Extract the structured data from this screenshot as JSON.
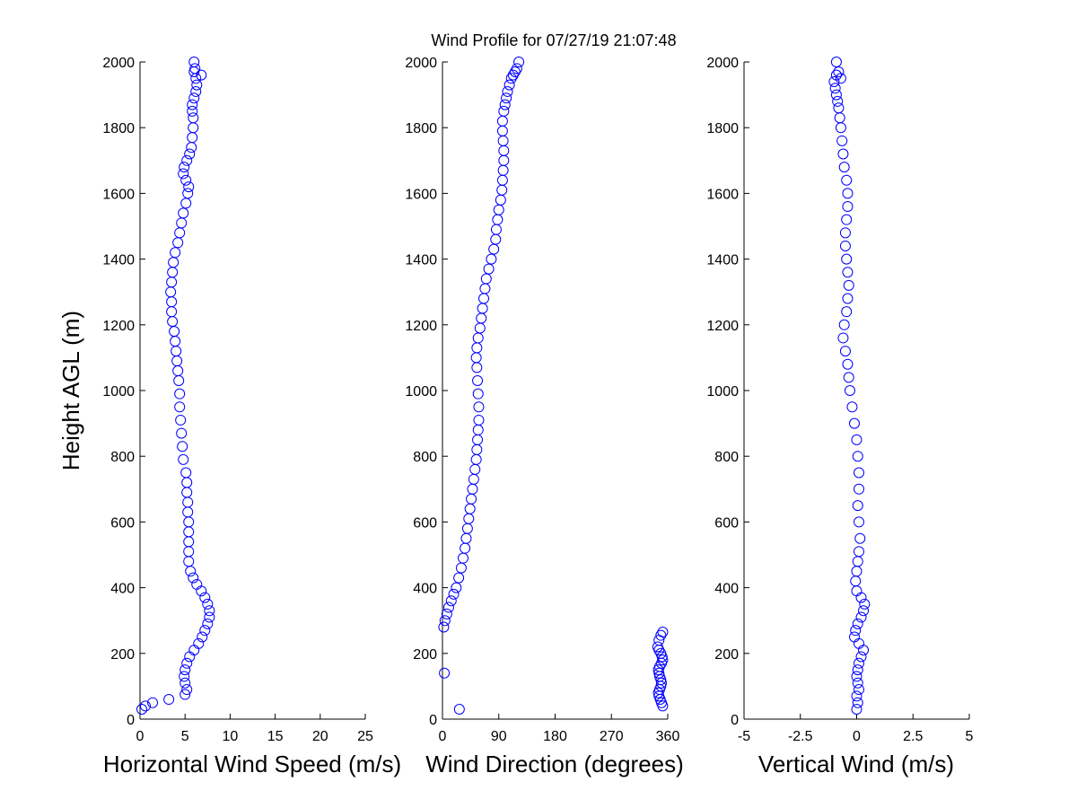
{
  "figure_title": "Wind Profile for  07/27/19 21:07:48",
  "chart_data": [
    {
      "type": "scatter",
      "xlabel": "Horizontal Wind Speed (m/s)",
      "ylabel": "Height AGL (m)",
      "xlim": [
        0,
        25
      ],
      "ylim": [
        0,
        2000
      ],
      "xticks": [
        "0",
        "5",
        "10",
        "15",
        "20",
        "25"
      ],
      "yticks": [
        "0",
        "200",
        "400",
        "600",
        "800",
        "1000",
        "1200",
        "1400",
        "1600",
        "1800",
        "2000"
      ],
      "marker_color": "#0000ff",
      "series": [
        {
          "x": [
            0.2,
            0.6,
            1.4,
            3.2,
            5.0,
            5.2,
            5.0,
            4.9,
            5.0,
            5.2,
            5.5,
            6.0,
            6.5,
            6.9,
            7.2,
            7.5,
            7.7,
            7.7,
            7.5,
            7.2,
            6.8,
            6.3,
            5.9,
            5.6,
            5.4,
            5.4,
            5.4,
            5.4,
            5.4,
            5.3,
            5.3,
            5.2,
            5.2,
            5.1,
            4.8,
            4.7,
            4.6,
            4.5,
            4.4,
            4.4,
            4.3,
            4.2,
            4.1,
            4.0,
            3.9,
            3.8,
            3.6,
            3.5,
            3.5,
            3.4,
            3.5,
            3.6,
            3.7,
            3.9,
            4.2,
            4.4,
            4.6,
            4.8,
            5.1,
            5.3,
            5.4,
            5.1,
            4.8,
            4.9,
            5.2,
            5.5,
            5.7,
            5.8,
            5.9,
            5.9,
            5.8,
            5.8,
            6.0,
            6.2,
            6.3,
            6.2,
            6.0,
            6.1,
            6.8,
            6.0
          ],
          "y": [
            30,
            40,
            50,
            60,
            75,
            90,
            110,
            130,
            150,
            170,
            190,
            210,
            230,
            250,
            270,
            290,
            310,
            330,
            350,
            370,
            390,
            410,
            430,
            450,
            480,
            510,
            540,
            570,
            600,
            630,
            660,
            690,
            720,
            750,
            790,
            830,
            870,
            910,
            950,
            990,
            1030,
            1060,
            1090,
            1120,
            1150,
            1180,
            1210,
            1240,
            1270,
            1300,
            1330,
            1360,
            1390,
            1420,
            1450,
            1480,
            1510,
            1540,
            1570,
            1600,
            1620,
            1640,
            1660,
            1680,
            1700,
            1720,
            1740,
            1770,
            1800,
            1830,
            1850,
            1870,
            1890,
            1910,
            1930,
            1950,
            1970,
            1980,
            1960,
            2000
          ]
        }
      ]
    },
    {
      "type": "scatter",
      "xlabel": "Wind Direction (degrees)",
      "ylabel": "",
      "xlim": [
        0,
        360
      ],
      "ylim": [
        0,
        2000
      ],
      "xticks": [
        "0",
        "90",
        "180",
        "270",
        "360"
      ],
      "yticks": [
        "0",
        "200",
        "400",
        "600",
        "800",
        "1000",
        "1200",
        "1400",
        "1600",
        "1800",
        "2000"
      ],
      "marker_color": "#0000ff",
      "series": [
        {
          "x": [
            27,
            3,
            2,
            4,
            7,
            10,
            14,
            18,
            22,
            26,
            30,
            33,
            36,
            38,
            40,
            42,
            44,
            46,
            48,
            50,
            52,
            54,
            55,
            56,
            57,
            58,
            58,
            57,
            56,
            55,
            54,
            55,
            57,
            60,
            62,
            64,
            66,
            68,
            70,
            74,
            78,
            82,
            85,
            86,
            88,
            90,
            93,
            95,
            96,
            97,
            98,
            98,
            97,
            96,
            96,
            98,
            100,
            102,
            104,
            107,
            110,
            113,
            116,
            119,
            122
          ],
          "y": [
            30,
            140,
            280,
            300,
            320,
            340,
            360,
            380,
            400,
            430,
            460,
            490,
            520,
            550,
            580,
            610,
            640,
            670,
            700,
            730,
            760,
            790,
            820,
            850,
            880,
            910,
            950,
            990,
            1030,
            1070,
            1100,
            1130,
            1160,
            1190,
            1220,
            1250,
            1280,
            1310,
            1340,
            1370,
            1400,
            1430,
            1460,
            1490,
            1520,
            1550,
            1580,
            1610,
            1640,
            1670,
            1700,
            1730,
            1760,
            1790,
            1820,
            1850,
            1870,
            1890,
            1910,
            1930,
            1950,
            1960,
            1970,
            1980,
            2000
          ]
        },
        {
          "x": [
            352,
            350,
            348,
            346,
            345,
            347,
            349,
            350,
            349,
            347,
            346,
            345,
            347,
            350,
            352,
            351,
            349,
            346,
            344,
            346,
            349,
            352
          ],
          "y": [
            40,
            50,
            60,
            70,
            80,
            90,
            100,
            110,
            120,
            130,
            140,
            150,
            160,
            170,
            180,
            190,
            200,
            210,
            220,
            240,
            255,
            265
          ]
        }
      ]
    },
    {
      "type": "scatter",
      "xlabel": "Vertical Wind (m/s)",
      "ylabel": "",
      "xlim": [
        -5,
        5
      ],
      "ylim": [
        0,
        2000
      ],
      "xticks": [
        "-5",
        "-2.5",
        "0",
        "2.5",
        "5"
      ],
      "yticks": [
        "0",
        "200",
        "400",
        "600",
        "800",
        "1000",
        "1200",
        "1400",
        "1600",
        "1800",
        "2000"
      ],
      "marker_color": "#0000ff",
      "series": [
        {
          "x": [
            0.0,
            0.05,
            0.0,
            0.1,
            0.05,
            0.0,
            0.05,
            0.1,
            0.2,
            0.3,
            0.1,
            -0.1,
            -0.05,
            0.05,
            0.2,
            0.3,
            0.35,
            0.2,
            0.0,
            -0.05,
            0.0,
            0.05,
            0.1,
            0.15,
            0.1,
            0.05,
            0.1,
            0.1,
            0.05,
            0.0,
            -0.1,
            -0.2,
            -0.3,
            -0.35,
            -0.4,
            -0.5,
            -0.6,
            -0.55,
            -0.45,
            -0.4,
            -0.35,
            -0.4,
            -0.45,
            -0.5,
            -0.5,
            -0.45,
            -0.4,
            -0.4,
            -0.45,
            -0.55,
            -0.6,
            -0.65,
            -0.7,
            -0.75,
            -0.8,
            -0.85,
            -0.9,
            -0.95,
            -1.0,
            -0.9,
            -0.8,
            -0.7,
            -0.9
          ],
          "y": [
            30,
            50,
            70,
            90,
            110,
            130,
            150,
            170,
            190,
            210,
            230,
            250,
            270,
            290,
            310,
            330,
            350,
            370,
            390,
            420,
            450,
            480,
            510,
            550,
            600,
            650,
            700,
            750,
            800,
            850,
            900,
            950,
            1000,
            1040,
            1080,
            1120,
            1160,
            1200,
            1240,
            1280,
            1320,
            1360,
            1400,
            1440,
            1480,
            1520,
            1560,
            1600,
            1640,
            1680,
            1720,
            1760,
            1800,
            1830,
            1860,
            1880,
            1900,
            1920,
            1940,
            1960,
            1970,
            1950,
            2000
          ]
        }
      ]
    }
  ]
}
